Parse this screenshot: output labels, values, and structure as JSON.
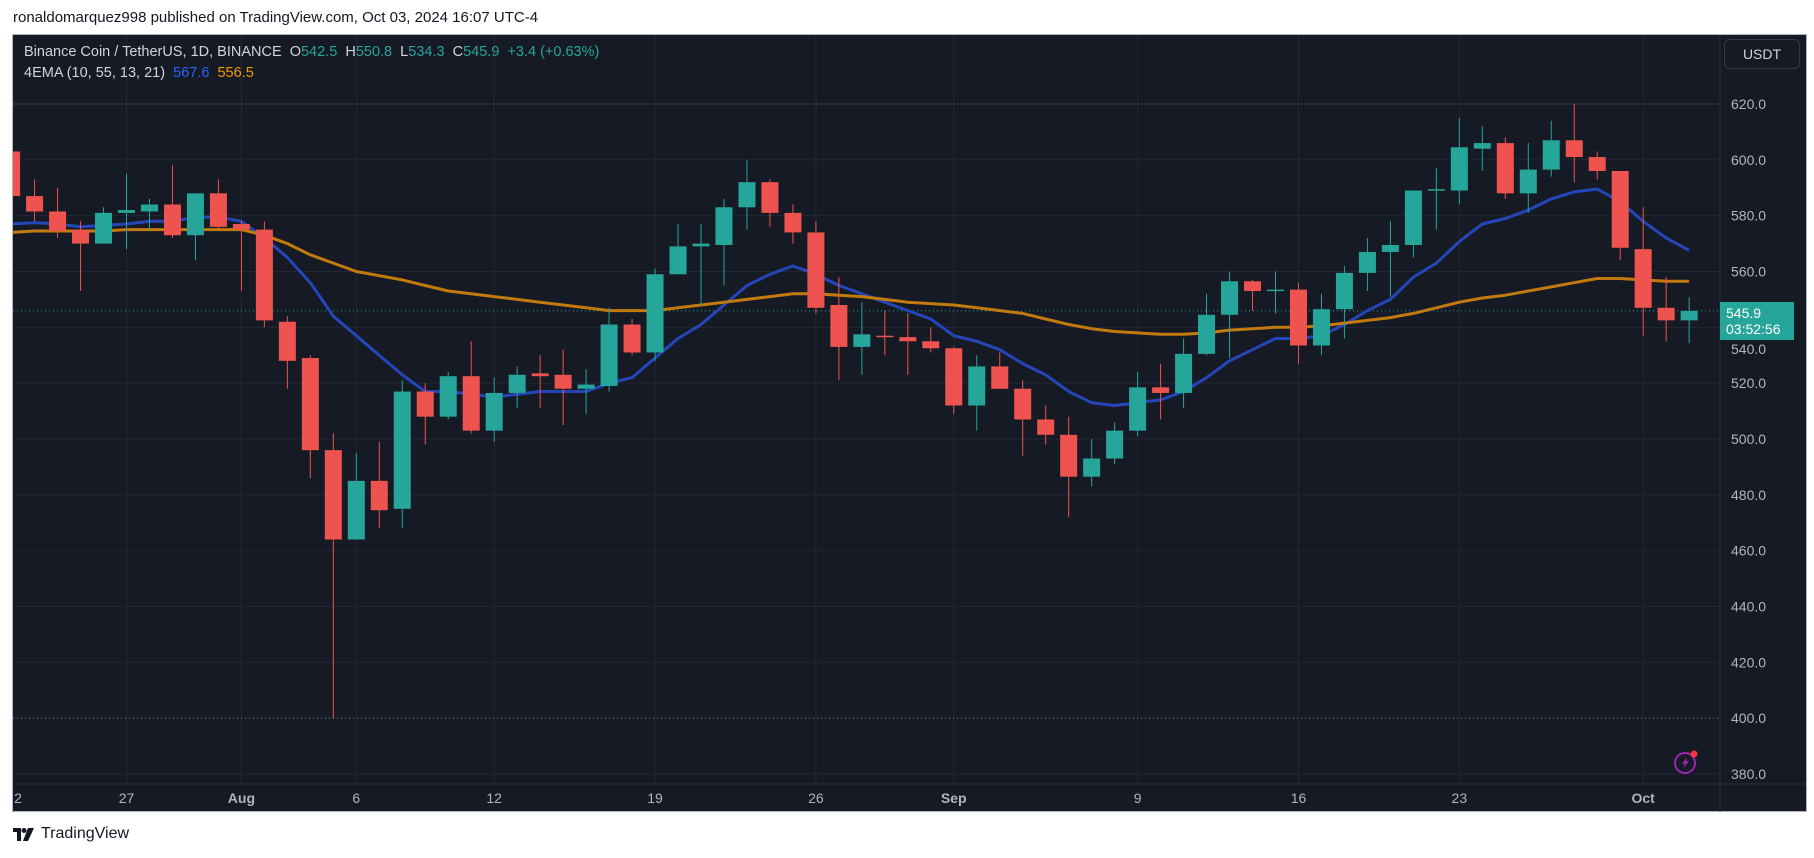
{
  "header": {
    "published": "ronaldomarquez998 published on TradingView.com, Oct 03, 2024 16:07 UTC-4"
  },
  "legend": {
    "symbol": "Binance Coin / TetherUS, 1D, BINANCE",
    "o_label": "O",
    "o": "542.5",
    "h_label": "H",
    "h": "550.8",
    "l_label": "L",
    "l": "534.3",
    "c_label": "C",
    "c": "545.9",
    "change": "+3.4 (+0.63%)",
    "indicator": "4EMA (10, 55, 13, 21)",
    "ema1": "567.6",
    "ema2": "556.5"
  },
  "price_axis": {
    "currency": "USDT",
    "last_price": "545.9",
    "countdown": "03:52:56"
  },
  "footer": {
    "brand": "TradingView"
  },
  "colors": {
    "up": "#26a69a",
    "down": "#ef5350",
    "ema_fast": "#2446b8",
    "ema_slow": "#c27a0e",
    "background": "#161a25",
    "grid": "#232733"
  },
  "chart_data": {
    "type": "candlestick",
    "ylim": [
      375,
      628
    ],
    "y_ticks": [
      "380.0",
      "400.0",
      "420.0",
      "440.0",
      "460.0",
      "480.0",
      "500.0",
      "520.0",
      "540.0",
      "560.0",
      "580.0",
      "600.0",
      "620.0"
    ],
    "x_ticks": [
      {
        "label": "2",
        "day": 0
      },
      {
        "label": "27",
        "day": 5
      },
      {
        "label": "Aug",
        "day": 10
      },
      {
        "label": "6",
        "day": 15
      },
      {
        "label": "12",
        "day": 21
      },
      {
        "label": "19",
        "day": 28
      },
      {
        "label": "26",
        "day": 35
      },
      {
        "label": "Sep",
        "day": 41
      },
      {
        "label": "9",
        "day": 49
      },
      {
        "label": "16",
        "day": 56
      },
      {
        "label": "23",
        "day": 63
      },
      {
        "label": "Oct",
        "day": 71
      }
    ],
    "dates": [
      "Jul 22",
      "Jul 23",
      "Jul 24",
      "Jul 25",
      "Jul 26",
      "Jul 27",
      "Jul 28",
      "Jul 29",
      "Jul 30",
      "Jul 31",
      "Aug 1",
      "Aug 2",
      "Aug 3",
      "Aug 4",
      "Aug 5",
      "Aug 6",
      "Aug 7",
      "Aug 8",
      "Aug 9",
      "Aug 10",
      "Aug 11",
      "Aug 12",
      "Aug 13",
      "Aug 14",
      "Aug 15",
      "Aug 16",
      "Aug 17",
      "Aug 18",
      "Aug 19",
      "Aug 20",
      "Aug 21",
      "Aug 22",
      "Aug 23",
      "Aug 24",
      "Aug 25",
      "Aug 26",
      "Aug 27",
      "Aug 28",
      "Aug 29",
      "Aug 30",
      "Aug 31",
      "Sep 1",
      "Sep 2",
      "Sep 3",
      "Sep 4",
      "Sep 5",
      "Sep 6",
      "Sep 7",
      "Sep 8",
      "Sep 9",
      "Sep 10",
      "Sep 11",
      "Sep 12",
      "Sep 13",
      "Sep 14",
      "Sep 15",
      "Sep 16",
      "Sep 17",
      "Sep 18",
      "Sep 19",
      "Sep 20",
      "Sep 21",
      "Sep 22",
      "Sep 23",
      "Sep 24",
      "Sep 25",
      "Sep 26",
      "Sep 27",
      "Sep 28",
      "Sep 29",
      "Sep 30",
      "Oct 1",
      "Oct 2",
      "Oct 3"
    ],
    "ohlc": [
      [
        603,
        605,
        585,
        587
      ],
      [
        587,
        593,
        578,
        581.5
      ],
      [
        581.5,
        590,
        572,
        574.5
      ],
      [
        575,
        578,
        553,
        570
      ],
      [
        570,
        583,
        570,
        581
      ],
      [
        581,
        595,
        568,
        582
      ],
      [
        581.5,
        586,
        575,
        584
      ],
      [
        584,
        598,
        572,
        573
      ],
      [
        573,
        588,
        564,
        588
      ],
      [
        588,
        593,
        575,
        576
      ],
      [
        577,
        578,
        553,
        575
      ],
      [
        575,
        578,
        540,
        542.5
      ],
      [
        542,
        544,
        518,
        528
      ],
      [
        529,
        530,
        486,
        496
      ],
      [
        496,
        502,
        400,
        464
      ],
      [
        464,
        495,
        464,
        485
      ],
      [
        485,
        499,
        468,
        474.5
      ],
      [
        475,
        521,
        468,
        517
      ],
      [
        517,
        520,
        498,
        508
      ],
      [
        508,
        524,
        507,
        522.5
      ],
      [
        522.5,
        535,
        502,
        503
      ],
      [
        503,
        522,
        499,
        516.5
      ],
      [
        516.5,
        526,
        511,
        523
      ],
      [
        523.5,
        530,
        511,
        522.5
      ],
      [
        523,
        532,
        505,
        518
      ],
      [
        518,
        525,
        509,
        519.5
      ],
      [
        519,
        547,
        517,
        541
      ],
      [
        541,
        543,
        530,
        531
      ],
      [
        531,
        561,
        528,
        559
      ],
      [
        559,
        577,
        559,
        569
      ],
      [
        569,
        577,
        548,
        570
      ],
      [
        569.5,
        586,
        555,
        583
      ],
      [
        583,
        600,
        575,
        592
      ],
      [
        592,
        593,
        576,
        581
      ],
      [
        581,
        584,
        570,
        574
      ],
      [
        574,
        578,
        545,
        547
      ],
      [
        548,
        558,
        521,
        533
      ],
      [
        533,
        549,
        523,
        537.5
      ],
      [
        537,
        546,
        530,
        536.5
      ],
      [
        536.5,
        545,
        523,
        535
      ],
      [
        535,
        540,
        531,
        532.5
      ],
      [
        532.5,
        533,
        509,
        512
      ],
      [
        512,
        530,
        503,
        526
      ],
      [
        526,
        531,
        518,
        518
      ],
      [
        518,
        521,
        494,
        507
      ],
      [
        507,
        512,
        498,
        501.5
      ],
      [
        501.5,
        508,
        472,
        486.5
      ],
      [
        486.5,
        500,
        483,
        493
      ],
      [
        493,
        506,
        491,
        503
      ],
      [
        503,
        524,
        501,
        518.5
      ],
      [
        518.5,
        527,
        507,
        516.5
      ],
      [
        516.5,
        536,
        511,
        530.5
      ],
      [
        530.5,
        552,
        530,
        544.5
      ],
      [
        544.5,
        560,
        529,
        556.5
      ],
      [
        556.5,
        557,
        546,
        553
      ],
      [
        553,
        560,
        545,
        553.5
      ],
      [
        553.5,
        556,
        527,
        533.5
      ],
      [
        533.5,
        552,
        530,
        546.5
      ],
      [
        546.5,
        562,
        536,
        559.5
      ],
      [
        559.5,
        572,
        553,
        567
      ],
      [
        567,
        578,
        551,
        569.5
      ],
      [
        569.5,
        589,
        565,
        589
      ],
      [
        589,
        597,
        575,
        589.5
      ],
      [
        589,
        615,
        584,
        604.5
      ],
      [
        604,
        612,
        596,
        606
      ],
      [
        606,
        608,
        586,
        588
      ],
      [
        588,
        606,
        581,
        596.5
      ],
      [
        596.5,
        614,
        594,
        607
      ],
      [
        607,
        620,
        592,
        601
      ],
      [
        601,
        603,
        593,
        596
      ],
      [
        596,
        596,
        564,
        568.5
      ],
      [
        568,
        583,
        537,
        547
      ],
      [
        547,
        558,
        535,
        542.5
      ],
      [
        542.5,
        550.8,
        534.3,
        545.9
      ]
    ],
    "series": [
      {
        "name": "567.6",
        "type": "line",
        "values": [
          577,
          577.5,
          577,
          576,
          576.5,
          577,
          578,
          578,
          579.5,
          579.5,
          578,
          572,
          565,
          556,
          544,
          537,
          530,
          523,
          517,
          517,
          516,
          515,
          516,
          517,
          517,
          517,
          520,
          522,
          529,
          536,
          541,
          548,
          555,
          559,
          562,
          559,
          555,
          552,
          549,
          546,
          543,
          537,
          535,
          532,
          527,
          523,
          517,
          513,
          512,
          513,
          514,
          517,
          522,
          528,
          532,
          536,
          536,
          537,
          541,
          546,
          550,
          558,
          563,
          570.7,
          577,
          579,
          582,
          586,
          588.5,
          589.5,
          585,
          578,
          572,
          567.6
        ]
      },
      {
        "name": "556.5",
        "type": "line",
        "values": [
          574,
          574.5,
          574.5,
          574.5,
          574.5,
          575,
          575,
          575,
          575,
          575,
          575,
          573,
          570,
          566,
          563,
          560,
          558.5,
          557,
          555,
          553,
          552,
          551,
          550,
          549,
          548,
          547,
          546,
          546,
          546,
          547,
          548,
          549,
          550,
          551,
          552,
          552,
          551.5,
          551,
          550,
          549,
          548.5,
          548,
          547,
          546,
          545,
          543,
          541,
          539.5,
          538.5,
          538,
          537.5,
          537.5,
          538,
          539,
          539.5,
          540,
          540,
          540.5,
          541.5,
          542.5,
          543.5,
          545,
          547,
          549,
          550.5,
          551.5,
          553,
          554.5,
          556,
          557.5,
          557.5,
          557,
          556.5,
          556.5
        ]
      }
    ],
    "reference_lines": [
      {
        "value": 620,
        "style": "dotted"
      },
      {
        "value": 400,
        "style": "dotted"
      },
      {
        "value": 545.9,
        "style": "dotted-teal"
      }
    ],
    "grid": true
  }
}
